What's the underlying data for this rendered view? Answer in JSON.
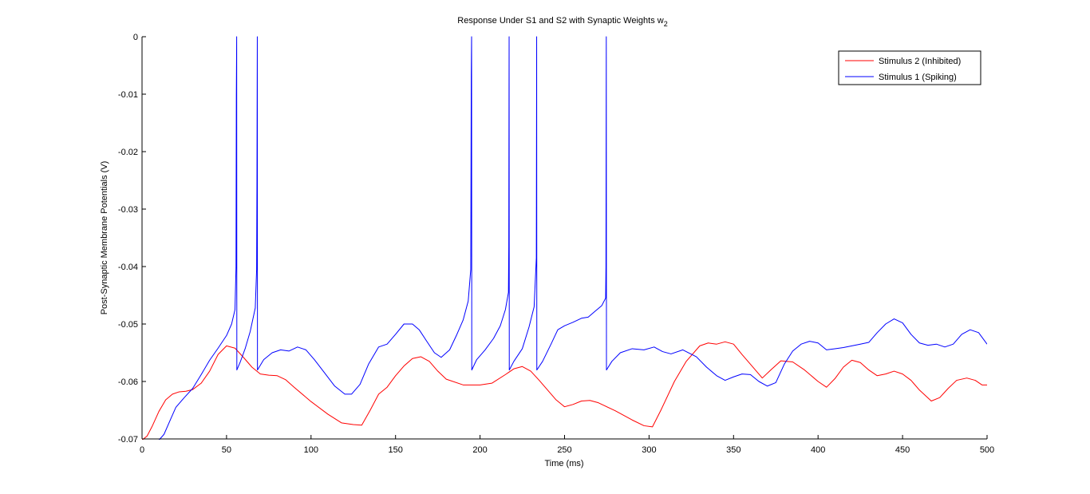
{
  "chart_data": {
    "type": "line",
    "title_main": "Response Under S1 and S2 with Synaptic Weights w",
    "title_subscript": "2",
    "xlabel": "Time (ms)",
    "ylabel": "Post-Synaptic Membrane Potentials (V)",
    "xlim": [
      0,
      500
    ],
    "ylim": [
      -0.07,
      0
    ],
    "xticks": [
      0,
      50,
      100,
      150,
      200,
      250,
      300,
      350,
      400,
      450,
      500
    ],
    "xtick_labels": [
      "0",
      "50",
      "100",
      "150",
      "200",
      "250",
      "300",
      "350",
      "400",
      "450",
      "500"
    ],
    "yticks": [
      0,
      -0.01,
      -0.02,
      -0.03,
      -0.04,
      -0.05,
      -0.06,
      -0.07
    ],
    "ytick_labels": [
      "0",
      "-0.01",
      "-0.02",
      "-0.03",
      "-0.04",
      "-0.05",
      "-0.06",
      "-0.07"
    ],
    "grid": false,
    "legend_position": "top-right",
    "series": [
      {
        "name": "Stimulus 2 (Inhibited)",
        "color": "#ff0000",
        "points": [
          [
            0,
            -0.0702
          ],
          [
            3,
            -0.0695
          ],
          [
            6,
            -0.0678
          ],
          [
            10,
            -0.0652
          ],
          [
            14,
            -0.0632
          ],
          [
            18,
            -0.0622
          ],
          [
            22,
            -0.0618
          ],
          [
            26,
            -0.0617
          ],
          [
            30,
            -0.0614
          ],
          [
            35,
            -0.0603
          ],
          [
            40,
            -0.0582
          ],
          [
            45,
            -0.0553
          ],
          [
            50,
            -0.0538
          ],
          [
            55,
            -0.0542
          ],
          [
            60,
            -0.0558
          ],
          [
            65,
            -0.0575
          ],
          [
            70,
            -0.0587
          ],
          [
            75,
            -0.0589
          ],
          [
            80,
            -0.059
          ],
          [
            85,
            -0.0597
          ],
          [
            90,
            -0.061
          ],
          [
            100,
            -0.0635
          ],
          [
            110,
            -0.0657
          ],
          [
            118,
            -0.0672
          ],
          [
            125,
            -0.0675
          ],
          [
            130,
            -0.0676
          ],
          [
            135,
            -0.065
          ],
          [
            140,
            -0.0622
          ],
          [
            145,
            -0.061
          ],
          [
            150,
            -0.059
          ],
          [
            155,
            -0.0573
          ],
          [
            160,
            -0.056
          ],
          [
            165,
            -0.0557
          ],
          [
            170,
            -0.0565
          ],
          [
            175,
            -0.0582
          ],
          [
            180,
            -0.0596
          ],
          [
            190,
            -0.0606
          ],
          [
            200,
            -0.0606
          ],
          [
            207,
            -0.0603
          ],
          [
            215,
            -0.0588
          ],
          [
            220,
            -0.0578
          ],
          [
            225,
            -0.0574
          ],
          [
            230,
            -0.0582
          ],
          [
            235,
            -0.0598
          ],
          [
            240,
            -0.0615
          ],
          [
            245,
            -0.0632
          ],
          [
            250,
            -0.0644
          ],
          [
            255,
            -0.064
          ],
          [
            260,
            -0.0634
          ],
          [
            265,
            -0.0633
          ],
          [
            270,
            -0.0637
          ],
          [
            280,
            -0.0651
          ],
          [
            290,
            -0.0667
          ],
          [
            297,
            -0.0677
          ],
          [
            302,
            -0.0679
          ],
          [
            307,
            -0.065
          ],
          [
            315,
            -0.06
          ],
          [
            322,
            -0.0565
          ],
          [
            330,
            -0.0538
          ],
          [
            335,
            -0.0533
          ],
          [
            340,
            -0.0535
          ],
          [
            345,
            -0.0531
          ],
          [
            350,
            -0.0535
          ],
          [
            355,
            -0.0553
          ],
          [
            360,
            -0.057
          ],
          [
            367,
            -0.0594
          ],
          [
            372,
            -0.058
          ],
          [
            378,
            -0.0564
          ],
          [
            385,
            -0.0566
          ],
          [
            392,
            -0.058
          ],
          [
            400,
            -0.06
          ],
          [
            405,
            -0.061
          ],
          [
            410,
            -0.0595
          ],
          [
            415,
            -0.0575
          ],
          [
            420,
            -0.0563
          ],
          [
            425,
            -0.0567
          ],
          [
            430,
            -0.058
          ],
          [
            435,
            -0.059
          ],
          [
            440,
            -0.0587
          ],
          [
            445,
            -0.0582
          ],
          [
            450,
            -0.0587
          ],
          [
            455,
            -0.0598
          ],
          [
            460,
            -0.0615
          ],
          [
            467,
            -0.0634
          ],
          [
            472,
            -0.0628
          ],
          [
            477,
            -0.0612
          ],
          [
            482,
            -0.0598
          ],
          [
            488,
            -0.0594
          ],
          [
            493,
            -0.0598
          ],
          [
            497,
            -0.0606
          ],
          [
            500,
            -0.0606
          ]
        ]
      },
      {
        "name": "Stimulus 1 (Spiking)",
        "color": "#0000ff",
        "points": [
          [
            0,
            -0.0702
          ],
          [
            5,
            -0.0703
          ],
          [
            10,
            -0.0702
          ],
          [
            13,
            -0.0692
          ],
          [
            17,
            -0.0665
          ],
          [
            20,
            -0.0645
          ],
          [
            25,
            -0.0628
          ],
          [
            30,
            -0.0612
          ],
          [
            35,
            -0.0588
          ],
          [
            40,
            -0.0563
          ],
          [
            45,
            -0.0542
          ],
          [
            50,
            -0.052
          ],
          [
            53,
            -0.05
          ],
          [
            55,
            -0.0475
          ],
          [
            55.6,
            -0.0402
          ],
          [
            55.8,
            -0.0101
          ],
          [
            56.0,
            0
          ],
          [
            56.1,
            -0.058
          ],
          [
            58,
            -0.0567
          ],
          [
            61,
            -0.0543
          ],
          [
            64,
            -0.0513
          ],
          [
            67,
            -0.0472
          ],
          [
            67.8,
            -0.0405
          ],
          [
            68.0,
            -0.0252
          ],
          [
            68.2,
            0
          ],
          [
            68.3,
            -0.058
          ],
          [
            72,
            -0.0562
          ],
          [
            77,
            -0.055
          ],
          [
            82,
            -0.0545
          ],
          [
            87,
            -0.0547
          ],
          [
            92,
            -0.054
          ],
          [
            97,
            -0.0545
          ],
          [
            102,
            -0.0562
          ],
          [
            108,
            -0.0585
          ],
          [
            114,
            -0.0608
          ],
          [
            120,
            -0.0622
          ],
          [
            124,
            -0.0622
          ],
          [
            129,
            -0.0605
          ],
          [
            134,
            -0.057
          ],
          [
            140,
            -0.054
          ],
          [
            145,
            -0.0535
          ],
          [
            150,
            -0.0518
          ],
          [
            155,
            -0.05
          ],
          [
            160,
            -0.05
          ],
          [
            164,
            -0.051
          ],
          [
            168,
            -0.0528
          ],
          [
            173,
            -0.055
          ],
          [
            177,
            -0.0558
          ],
          [
            182,
            -0.0545
          ],
          [
            186,
            -0.052
          ],
          [
            190,
            -0.0493
          ],
          [
            193,
            -0.046
          ],
          [
            194.5,
            -0.0405
          ],
          [
            194.8,
            -0.0068
          ],
          [
            195,
            0
          ],
          [
            195.1,
            -0.058
          ],
          [
            198,
            -0.0562
          ],
          [
            203,
            -0.0545
          ],
          [
            208,
            -0.0525
          ],
          [
            212,
            -0.0503
          ],
          [
            215,
            -0.0475
          ],
          [
            216.8,
            -0.0445
          ],
          [
            217.0,
            -0.0365
          ],
          [
            217.2,
            0
          ],
          [
            217.3,
            -0.058
          ],
          [
            220,
            -0.0565
          ],
          [
            225,
            -0.0543
          ],
          [
            229,
            -0.0505
          ],
          [
            232,
            -0.047
          ],
          [
            233.3,
            -0.0385
          ],
          [
            233.5,
            0
          ],
          [
            233.6,
            -0.058
          ],
          [
            237,
            -0.0565
          ],
          [
            242,
            -0.0535
          ],
          [
            246,
            -0.051
          ],
          [
            250,
            -0.0503
          ],
          [
            255,
            -0.0497
          ],
          [
            260,
            -0.049
          ],
          [
            264,
            -0.0488
          ],
          [
            268,
            -0.0478
          ],
          [
            272,
            -0.0468
          ],
          [
            274.3,
            -0.0455
          ],
          [
            274.5,
            -0.04
          ],
          [
            274.7,
            0
          ],
          [
            274.8,
            -0.058
          ],
          [
            278,
            -0.0565
          ],
          [
            283,
            -0.055
          ],
          [
            290,
            -0.0543
          ],
          [
            297,
            -0.0545
          ],
          [
            303,
            -0.054
          ],
          [
            308,
            -0.0548
          ],
          [
            313,
            -0.0552
          ],
          [
            320,
            -0.0545
          ],
          [
            328,
            -0.0557
          ],
          [
            334,
            -0.0575
          ],
          [
            340,
            -0.059
          ],
          [
            345,
            -0.0598
          ],
          [
            350,
            -0.0592
          ],
          [
            355,
            -0.0587
          ],
          [
            360,
            -0.0588
          ],
          [
            365,
            -0.06
          ],
          [
            370,
            -0.0608
          ],
          [
            375,
            -0.0602
          ],
          [
            380,
            -0.057
          ],
          [
            385,
            -0.0547
          ],
          [
            390,
            -0.0535
          ],
          [
            395,
            -0.053
          ],
          [
            400,
            -0.0533
          ],
          [
            405,
            -0.0545
          ],
          [
            410,
            -0.0543
          ],
          [
            415,
            -0.0541
          ],
          [
            420,
            -0.0538
          ],
          [
            425,
            -0.0535
          ],
          [
            430,
            -0.0532
          ],
          [
            435,
            -0.0515
          ],
          [
            440,
            -0.05
          ],
          [
            445,
            -0.0491
          ],
          [
            450,
            -0.0498
          ],
          [
            455,
            -0.0518
          ],
          [
            460,
            -0.0533
          ],
          [
            465,
            -0.0537
          ],
          [
            470,
            -0.0535
          ],
          [
            475,
            -0.054
          ],
          [
            480,
            -0.0535
          ],
          [
            485,
            -0.0518
          ],
          [
            490,
            -0.051
          ],
          [
            495,
            -0.0515
          ],
          [
            500,
            -0.0535
          ]
        ]
      }
    ]
  }
}
